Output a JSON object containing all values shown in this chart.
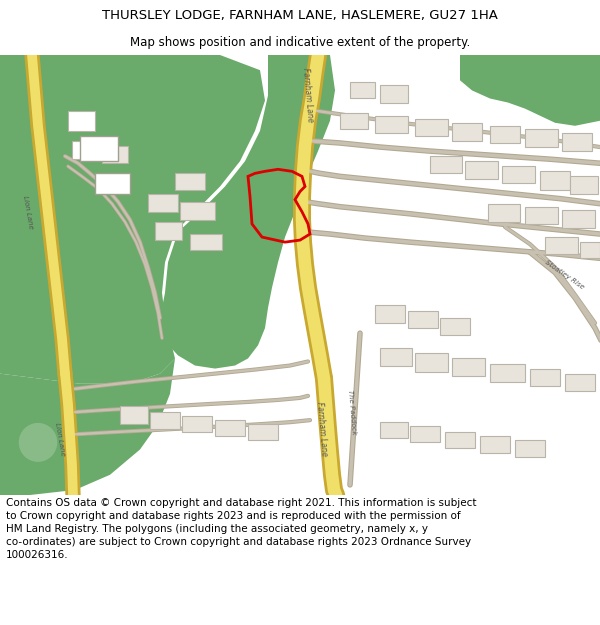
{
  "title": "THURSLEY LODGE, FARNHAM LANE, HASLEMERE, GU27 1HA",
  "subtitle": "Map shows position and indicative extent of the property.",
  "footer_line1": "Contains OS data © Crown copyright and database right 2021. This information is subject",
  "footer_line2": "to Crown copyright and database rights 2023 and is reproduced with the permission of",
  "footer_line3": "HM Land Registry. The polygons (including the associated geometry, namely x, y",
  "footer_line4": "co-ordinates) are subject to Crown copyright and database rights 2023 Ordnance Survey",
  "footer_line5": "100026316.",
  "title_fontsize": 9.5,
  "subtitle_fontsize": 8.5,
  "footer_fontsize": 7.5,
  "bg_color": "#ffffff",
  "map_bg": "#f2ede4",
  "green_color": "#6aaa6a",
  "road_yellow": "#f0e06a",
  "road_outline": "#c8a830",
  "building_color": "#e0dcd0",
  "building_outline": "#b8b4a8",
  "plot_outline": "#dd0000",
  "road_line": "#c8bea8",
  "figsize": [
    6.0,
    6.25
  ],
  "dpi": 100
}
